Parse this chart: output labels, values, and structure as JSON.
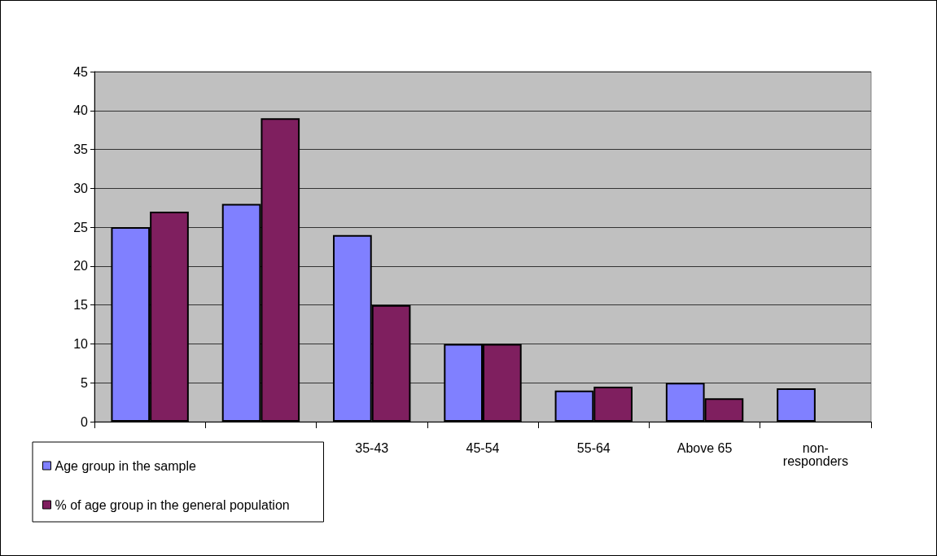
{
  "chart_data": {
    "type": "bar",
    "categories": [
      null,
      null,
      "35-43",
      "45-54",
      "55-64",
      "Above 65",
      "non-\nresponders"
    ],
    "series": [
      {
        "name": "Age group in the sample",
        "color": "#8080ff",
        "values": [
          25,
          28,
          24,
          10,
          4,
          5,
          4.3
        ]
      },
      {
        "name": "% of age group in the general population",
        "color": "#7f1f5f",
        "values": [
          27,
          39,
          15,
          10,
          4.5,
          3,
          null
        ]
      }
    ],
    "ylim": [
      0,
      45
    ],
    "yticks": [
      0,
      5,
      10,
      15,
      20,
      25,
      30,
      35,
      40,
      45
    ],
    "grid": "y",
    "legend": "bottom left"
  }
}
